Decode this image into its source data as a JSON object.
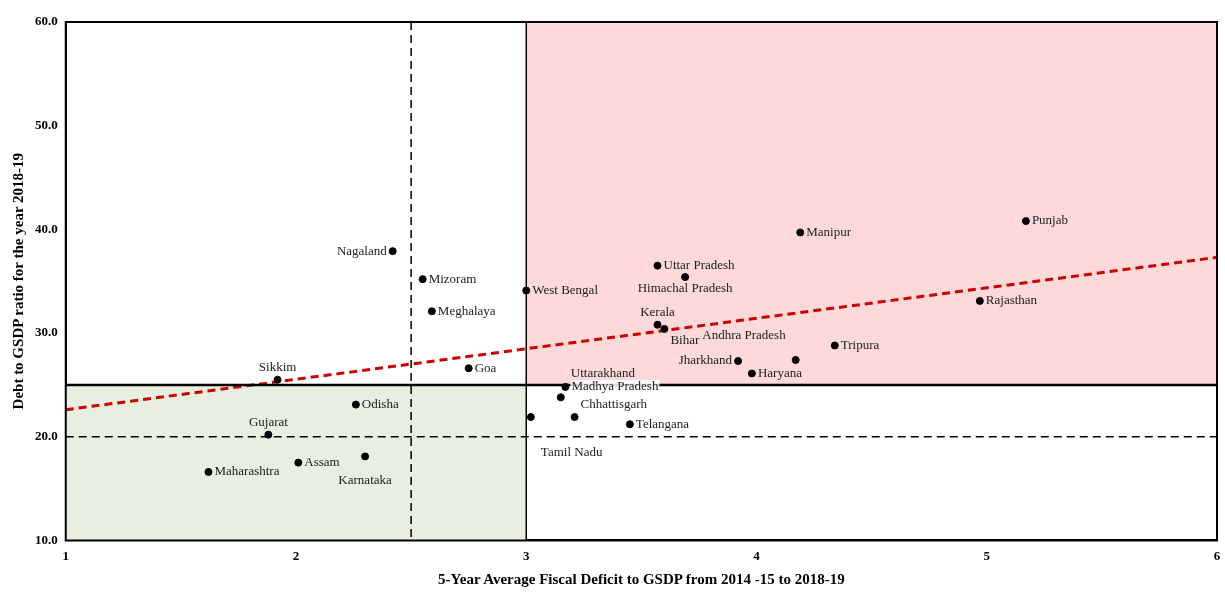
{
  "chart_data": {
    "type": "scatter",
    "xlabel": "5-Year Average Fiscal Deficit to GSDP from 2014 -15 to 2018-19",
    "ylabel": "Debt to GSDP ratio for the year 2018-19",
    "xlim": [
      1,
      6
    ],
    "xticks": [
      1,
      2,
      3,
      4,
      5,
      6
    ],
    "ylim": [
      10,
      60
    ],
    "yticks": [
      {
        "value": 10,
        "label": "10.0"
      },
      {
        "value": 20,
        "label": "20.0"
      },
      {
        "value": 30,
        "label": "30.0"
      },
      {
        "value": 40,
        "label": "40.0"
      },
      {
        "value": 50,
        "label": "50.0"
      },
      {
        "value": 60,
        "label": "60.0"
      }
    ],
    "grid": false,
    "legend": false,
    "series": [
      {
        "type": "area",
        "color": "#e6efe0",
        "marker": "none",
        "x": [
          1,
          3
        ],
        "values": [
          25,
          25
        ]
      },
      {
        "type": "line",
        "color": "#fdd9d9",
        "marker": "none",
        "x": [
          3,
          6
        ],
        "values": [
          25,
          25
        ],
        "lower": [
          25,
          25
        ],
        "upper": [
          60,
          60
        ]
      },
      {
        "color": "#000000",
        "marker": "circle",
        "x": [
          1.62,
          1.88,
          2.01,
          2.3,
          2.26,
          1.92,
          2.42,
          2.55,
          2.59,
          2.75,
          3.0,
          3.21,
          3.02,
          3.15,
          3.17,
          3.45,
          3.57,
          3.69,
          3.57,
          3.6,
          3.92,
          3.98,
          4.17,
          4.34,
          4.19,
          5.17,
          4.97
        ],
        "values": [
          16.6,
          20.2,
          17.5,
          18.1,
          23.1,
          25.5,
          37.9,
          35.2,
          32.1,
          26.6,
          34.1,
          21.9,
          21.9,
          23.8,
          24.8,
          21.2,
          36.5,
          35.4,
          30.8,
          30.4,
          27.3,
          26.1,
          27.4,
          28.8,
          39.7,
          40.8,
          33.1
        ]
      },
      {
        "type": "line",
        "color": "#cc0000",
        "line_style": "dashed",
        "marker": "none",
        "x": [
          1,
          6
        ],
        "values": [
          22.6,
          37.3
        ]
      }
    ],
    "ref_lines": [
      {
        "axis": "x",
        "value": 3,
        "color": "#000000",
        "line_style": "solid"
      },
      {
        "axis": "y",
        "value": 25,
        "color": "#000000",
        "line_style": "solid"
      },
      {
        "axis": "x",
        "value": 2.5,
        "color": "#000000",
        "line_style": "dashed"
      },
      {
        "axis": "y",
        "value": 20,
        "color": "#000000",
        "line_style": "dashed"
      }
    ],
    "annotations": [
      {
        "text": "Maharashtra",
        "x": 1.62,
        "y": 16.6
      },
      {
        "text": "Gujarat",
        "x": 1.88,
        "y": 20.2
      },
      {
        "text": "Assam",
        "x": 2.01,
        "y": 17.5
      },
      {
        "text": "Karnataka",
        "x": 2.3,
        "y": 18.1
      },
      {
        "text": "Odisha",
        "x": 2.26,
        "y": 23.1
      },
      {
        "text": "Sikkim",
        "x": 1.92,
        "y": 25.5
      },
      {
        "text": "Nagaland",
        "x": 2.42,
        "y": 37.9
      },
      {
        "text": "Mizoram",
        "x": 2.55,
        "y": 35.2
      },
      {
        "text": "Meghalaya",
        "x": 2.59,
        "y": 32.1
      },
      {
        "text": "Goa",
        "x": 2.75,
        "y": 26.6
      },
      {
        "text": "West Bengal",
        "x": 3.0,
        "y": 34.1
      },
      {
        "text": "Chhattisgarh",
        "x": 3.21,
        "y": 21.9
      },
      {
        "text": "Tamil Nadu",
        "x": 3.02,
        "y": 21.9
      },
      {
        "text": "Uttarakhand",
        "x": 3.15,
        "y": 23.8
      },
      {
        "text": "Madhya Pradesh",
        "x": 3.17,
        "y": 24.8
      },
      {
        "text": "Telangana",
        "x": 3.45,
        "y": 21.2
      },
      {
        "text": "Uttar Pradesh",
        "x": 3.57,
        "y": 36.5
      },
      {
        "text": "Himachal Pradesh",
        "x": 3.69,
        "y": 35.4
      },
      {
        "text": "Kerala",
        "x": 3.57,
        "y": 30.8
      },
      {
        "text": "Bihar",
        "x": 3.6,
        "y": 30.4
      },
      {
        "text": "Jharkhand",
        "x": 3.92,
        "y": 27.3
      },
      {
        "text": "Haryana",
        "x": 3.98,
        "y": 26.1
      },
      {
        "text": "Andhra Pradesh",
        "x": 4.17,
        "y": 27.4
      },
      {
        "text": "Tripura",
        "x": 4.34,
        "y": 28.8
      },
      {
        "text": "Manipur",
        "x": 4.19,
        "y": 39.7
      },
      {
        "text": "Punjab",
        "x": 5.17,
        "y": 40.8
      },
      {
        "text": "Rajasthan",
        "x": 4.97,
        "y": 33.1
      }
    ]
  }
}
